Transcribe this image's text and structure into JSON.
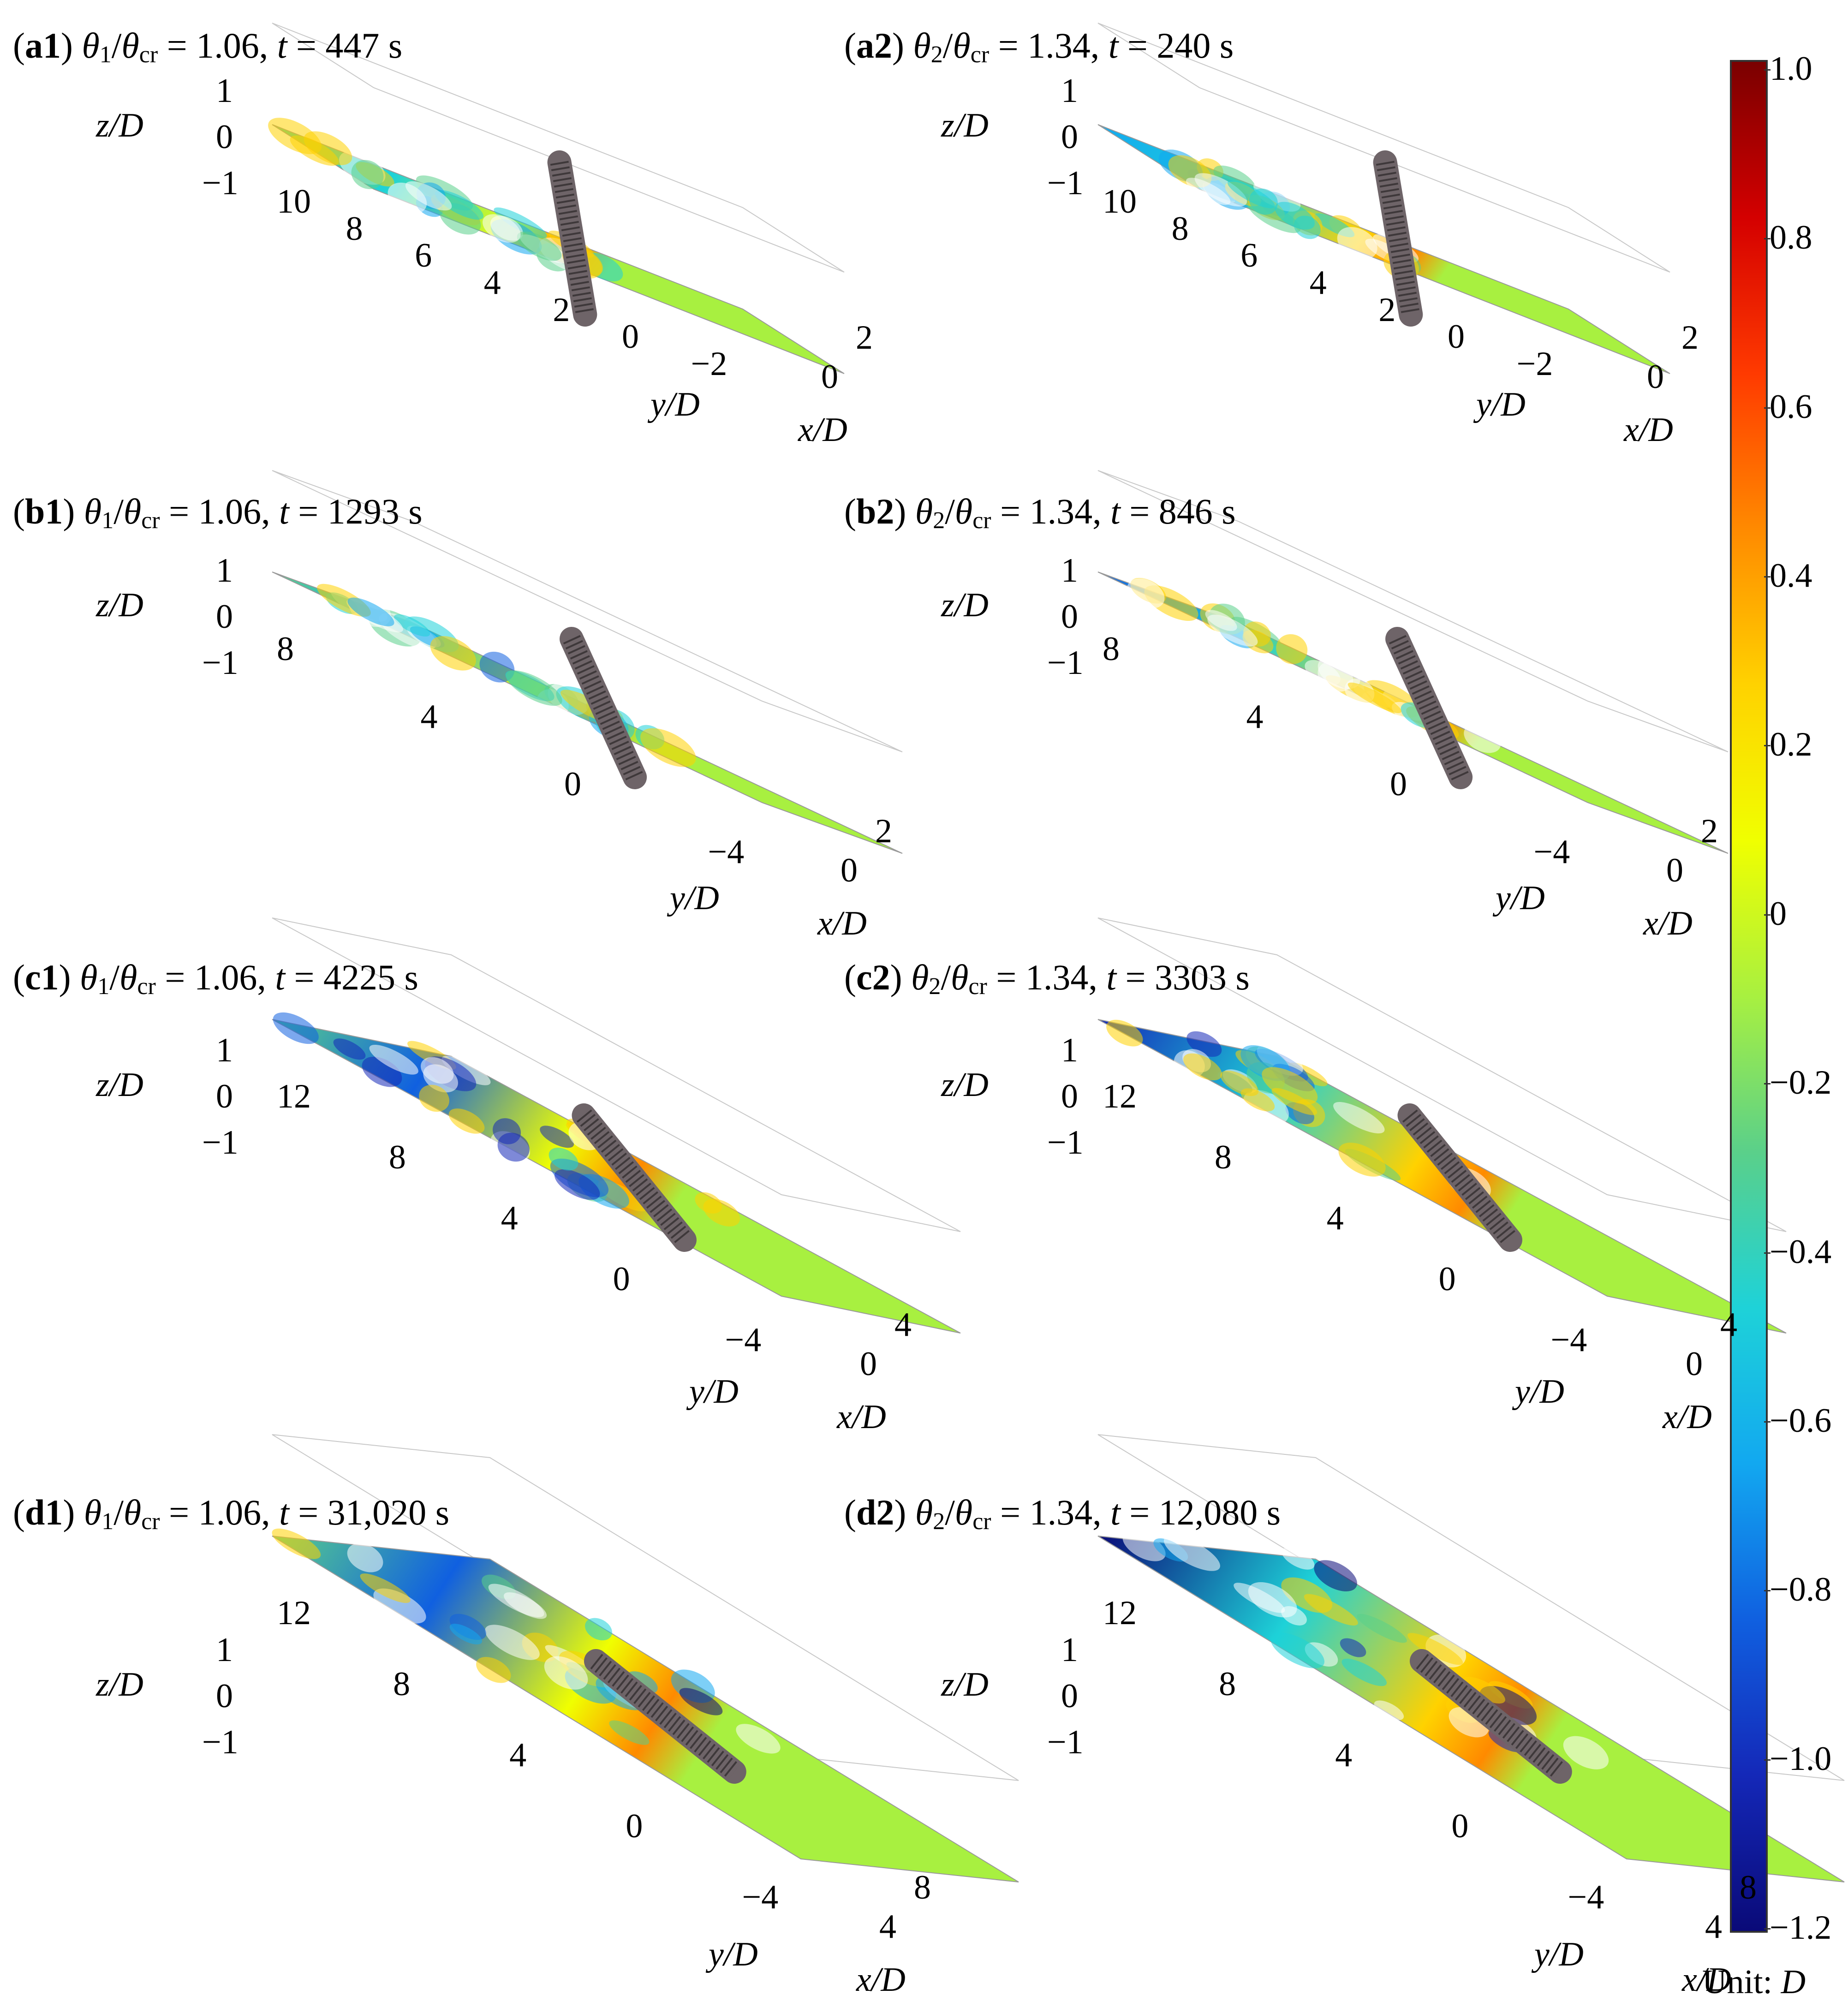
{
  "panels": [
    {
      "tag": "a1",
      "theta_sub": "1",
      "ratio": "= 1.06,",
      "time": "= 447 s",
      "z_ticks": [
        "1",
        "0",
        "−1"
      ],
      "y_ticks": [
        "10",
        "8",
        "6",
        "4",
        "2",
        "0",
        "−2"
      ],
      "x_ticks": [
        "0",
        "2"
      ]
    },
    {
      "tag": "a2",
      "theta_sub": "2",
      "ratio": "= 1.34,",
      "time": "= 240 s",
      "z_ticks": [
        "1",
        "0",
        "−1"
      ],
      "y_ticks": [
        "10",
        "8",
        "6",
        "4",
        "2",
        "0",
        "−2"
      ],
      "x_ticks": [
        "0",
        "2"
      ]
    },
    {
      "tag": "b1",
      "theta_sub": "1",
      "ratio": "= 1.06,",
      "time": "= 1293 s",
      "z_ticks": [
        "1",
        "0",
        "−1"
      ],
      "y_ticks": [
        "8",
        "4",
        "0",
        "−4"
      ],
      "x_ticks": [
        "0",
        "2"
      ]
    },
    {
      "tag": "b2",
      "theta_sub": "2",
      "ratio": "= 1.34,",
      "time": "= 846 s",
      "z_ticks": [
        "1",
        "0",
        "−1"
      ],
      "y_ticks": [
        "8",
        "4",
        "0",
        "−4"
      ],
      "x_ticks": [
        "0",
        "2"
      ]
    },
    {
      "tag": "c1",
      "theta_sub": "1",
      "ratio": "= 1.06,",
      "time": "= 4225 s",
      "z_ticks": [
        "1",
        "0",
        "−1"
      ],
      "y_ticks": [
        "12",
        "8",
        "4",
        "0",
        "−4"
      ],
      "x_ticks": [
        "0",
        "4"
      ]
    },
    {
      "tag": "c2",
      "theta_sub": "2",
      "ratio": "= 1.34,",
      "time": "= 3303 s",
      "z_ticks": [
        "1",
        "0",
        "−1"
      ],
      "y_ticks": [
        "12",
        "8",
        "4",
        "0",
        "−4"
      ],
      "x_ticks": [
        "0",
        "4"
      ]
    },
    {
      "tag": "d1",
      "theta_sub": "1",
      "ratio": "= 1.06,",
      "time": "= 31,020 s",
      "z_ticks": [
        "1",
        "0",
        "−1"
      ],
      "y_ticks": [
        "12",
        "8",
        "4",
        "0",
        "−4"
      ],
      "x_ticks": [
        "4",
        "8"
      ]
    },
    {
      "tag": "d2",
      "theta_sub": "2",
      "ratio": "= 1.34,",
      "time": "= 12,080 s",
      "z_ticks": [
        "1",
        "0",
        "−1"
      ],
      "y_ticks": [
        "12",
        "8",
        "4",
        "0",
        "−4"
      ],
      "x_ticks": [
        "4",
        "8"
      ]
    }
  ],
  "axis_labels": {
    "x": "x",
    "y": "y",
    "z": "z",
    "denom": "/D"
  },
  "title_parts": {
    "theta": "θ",
    "cr": "cr",
    "t": "t"
  },
  "colorbar": {
    "ticks": [
      "1.0",
      "0.8",
      "0.6",
      "0.4",
      "0.2",
      "0",
      "−0.2",
      "−0.4",
      "−0.6",
      "−0.8",
      "−1.0",
      "−1.2"
    ],
    "min": -1.2,
    "max": 1.0,
    "unit_prefix": "Unit: ",
    "unit_symbol": "D",
    "colormap": [
      "#7a0000",
      "#d40000",
      "#ff3a00",
      "#ff8a00",
      "#ffd200",
      "#f0ff00",
      "#a8f040",
      "#5ad08a",
      "#1ed2d8",
      "#12a8f0",
      "#1060e0",
      "#1428b8",
      "#0a0a78"
    ]
  },
  "colors": {
    "pipe": "#6e6468",
    "pipe_hatch": "#3e383a",
    "frame": "#c8c8c8"
  }
}
